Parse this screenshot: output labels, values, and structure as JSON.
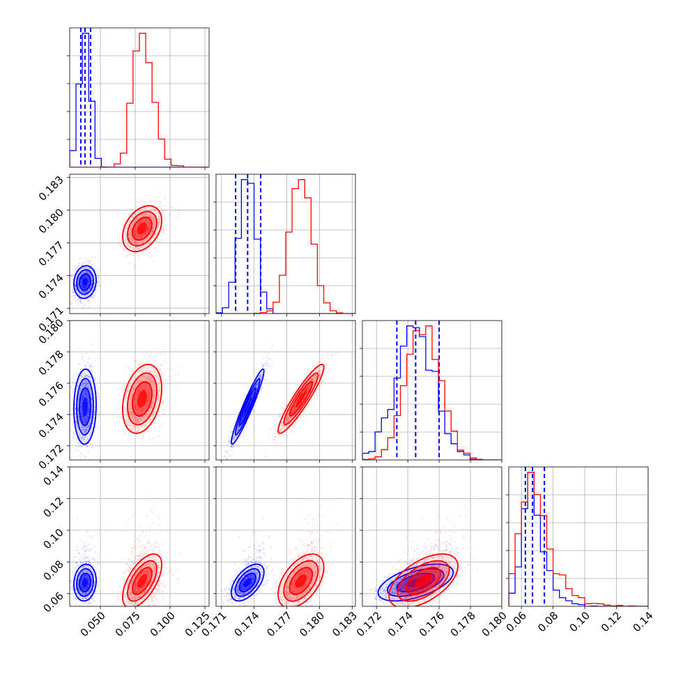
{
  "chart_data": {
    "type": "corner",
    "title": "",
    "parameters": [
      {
        "ticks": [
          0.05,
          0.075,
          0.1,
          0.125
        ],
        "tick_labels": [
          "0.050",
          "0.075",
          "0.100",
          "0.125"
        ],
        "lim": [
          0.028,
          0.128
        ]
      },
      {
        "ticks": [
          0.171,
          0.174,
          0.177,
          0.18,
          0.183
        ],
        "tick_labels": [
          "0.171",
          "0.174",
          "0.177",
          "0.180",
          "0.183"
        ],
        "lim": [
          0.1705,
          0.1833
        ]
      },
      {
        "ticks": [
          0.172,
          0.174,
          0.176,
          0.178,
          0.18
        ],
        "tick_labels": [
          "0.172",
          "0.174",
          "0.176",
          "0.178",
          "0.180"
        ],
        "lim": [
          0.1711,
          0.18
        ]
      },
      {
        "ticks": [
          0.06,
          0.08,
          0.1,
          0.12,
          0.14
        ],
        "tick_labels": [
          "0.06",
          "0.08",
          "0.10",
          "0.12",
          "0.14"
        ],
        "lim": [
          0.052,
          0.14
        ]
      }
    ],
    "series": [
      {
        "color": "#0000ff",
        "mean": [
          0.039,
          0.1734,
          0.1745,
          0.067
        ],
        "std": [
          0.004,
          0.00075,
          0.0012,
          0.0058
        ],
        "cov_coef": {
          "0-1": 0.1,
          "0-2": 0.05,
          "0-3": 0.1,
          "1-2": 0.95,
          "1-3": 0.55,
          "2-3": 0.55
        },
        "quantiles": [
          [
            0.036,
            0.039,
            0.043
          ],
          [
            0.1723,
            0.1734,
            0.1746
          ],
          [
            0.1733,
            0.1745,
            0.176
          ],
          [
            0.0625,
            0.067,
            0.0745
          ]
        ]
      },
      {
        "color": "#ff0000",
        "mean": [
          0.08,
          0.1783,
          0.175,
          0.068
        ],
        "std": [
          0.007,
          0.00105,
          0.0011,
          0.0085
        ],
        "cov_coef": {
          "0-1": 0.35,
          "0-2": 0.3,
          "0-3": 0.6,
          "1-2": 0.92,
          "1-3": 0.5,
          "2-3": 0.55
        },
        "quantiles": null
      }
    ],
    "grid": true,
    "legend": "none"
  }
}
